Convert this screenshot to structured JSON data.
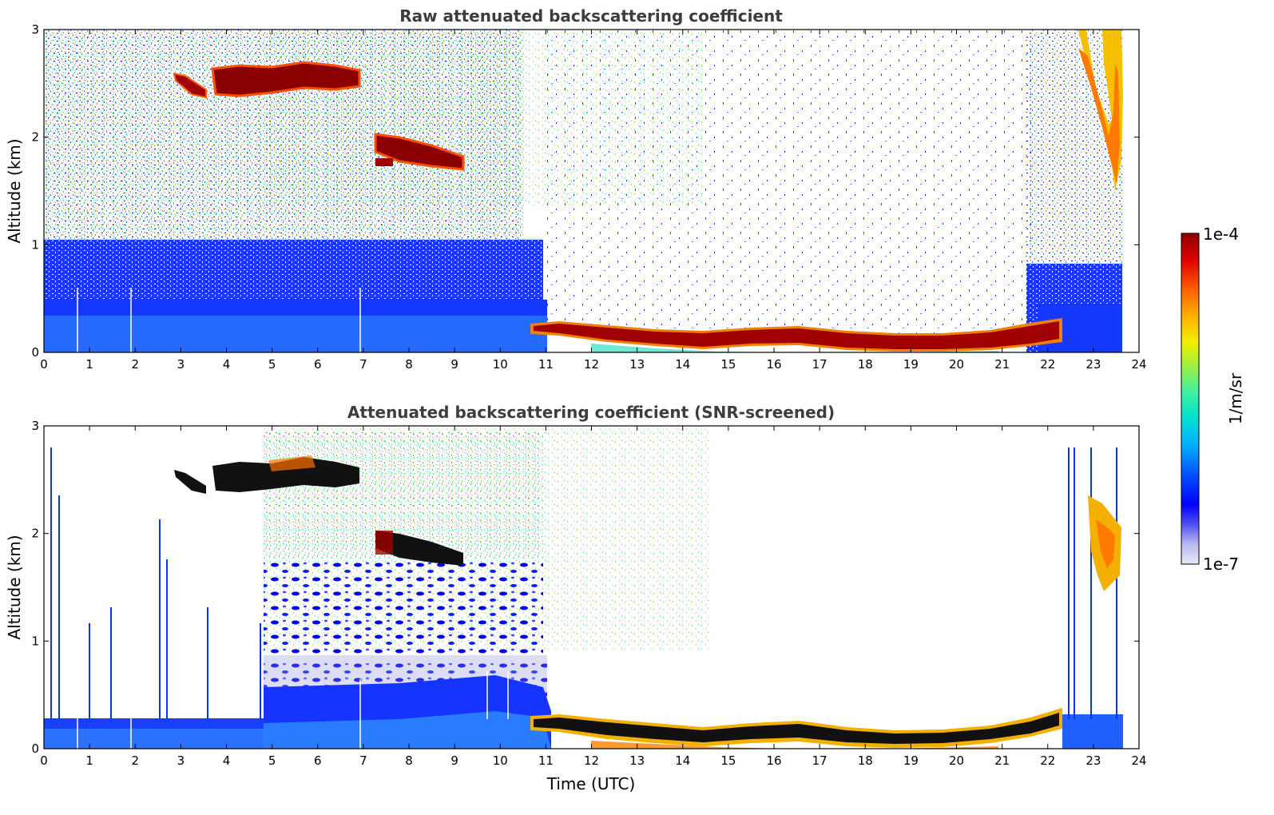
{
  "chart_data": [
    {
      "type": "heatmap",
      "title": "Raw attenuated backscattering coefficient",
      "xlabel": "",
      "ylabel": "Altitude (km)",
      "xlim": [
        0,
        24
      ],
      "ylim": [
        0,
        3
      ],
      "xticks": [
        "0",
        "1",
        "2",
        "3",
        "4",
        "5",
        "6",
        "7",
        "8",
        "9",
        "10",
        "11",
        "12",
        "13",
        "14",
        "15",
        "16",
        "17",
        "18",
        "19",
        "20",
        "21",
        "22",
        "23",
        "24"
      ],
      "yticks": [
        "0",
        "1",
        "2",
        "3"
      ],
      "features": [
        {
          "kind": "boundary-layer",
          "x": [
            0,
            11
          ],
          "y": [
            0,
            0.35
          ],
          "level": "low"
        },
        {
          "kind": "cloud-layer",
          "x": [
            10.7,
            22.3
          ],
          "y": [
            0.05,
            0.28
          ],
          "level": "high"
        },
        {
          "kind": "cloud",
          "x": [
            3.8,
            6.9
          ],
          "y": [
            2.4,
            2.7
          ],
          "level": "high"
        },
        {
          "kind": "cloud",
          "x": [
            2.9,
            3.6
          ],
          "y": [
            2.4,
            2.6
          ],
          "level": "high"
        },
        {
          "kind": "cloud",
          "x": [
            7.3,
            9.2
          ],
          "y": [
            1.7,
            1.95
          ],
          "level": "high"
        },
        {
          "kind": "plume",
          "x": [
            22.8,
            23.6
          ],
          "y": [
            1.4,
            3.0
          ],
          "level": "mid-high"
        }
      ]
    },
    {
      "type": "heatmap",
      "title": "Attenuated backscattering coefficient (SNR-screened)",
      "xlabel": "Time (UTC)",
      "ylabel": "Altitude (km)",
      "xlim": [
        0,
        24
      ],
      "ylim": [
        0,
        3
      ],
      "xticks": [
        "0",
        "1",
        "2",
        "3",
        "4",
        "5",
        "6",
        "7",
        "8",
        "9",
        "10",
        "11",
        "12",
        "13",
        "14",
        "15",
        "16",
        "17",
        "18",
        "19",
        "20",
        "21",
        "22",
        "23",
        "24"
      ],
      "yticks": [
        "0",
        "1",
        "2",
        "3"
      ],
      "features": [
        {
          "kind": "boundary-layer",
          "x": [
            0,
            11
          ],
          "y": [
            0,
            0.25
          ],
          "level": "low"
        },
        {
          "kind": "cloud-layer",
          "x": [
            10.7,
            22.3
          ],
          "y": [
            0.05,
            0.25
          ],
          "level": "saturated"
        },
        {
          "kind": "cloud",
          "x": [
            3.8,
            6.9
          ],
          "y": [
            2.4,
            2.7
          ],
          "level": "saturated"
        },
        {
          "kind": "cloud",
          "x": [
            7.3,
            9.2
          ],
          "y": [
            1.7,
            1.95
          ],
          "level": "saturated"
        },
        {
          "kind": "plume",
          "x": [
            22.9,
            23.6
          ],
          "y": [
            1.4,
            2.4
          ],
          "level": "mid-high"
        }
      ]
    }
  ],
  "colorbar": {
    "label": "1/m/sr",
    "max_label": "1e-4",
    "min_label": "1e-7",
    "colors": [
      "#e9e9f8",
      "#b9b9f0",
      "#5050f0",
      "#0000ff",
      "#0050ff",
      "#00b0ff",
      "#00e0d0",
      "#40f0a0",
      "#a0f040",
      "#f0f000",
      "#ffb000",
      "#ff6000",
      "#e00000",
      "#8b0000"
    ]
  }
}
